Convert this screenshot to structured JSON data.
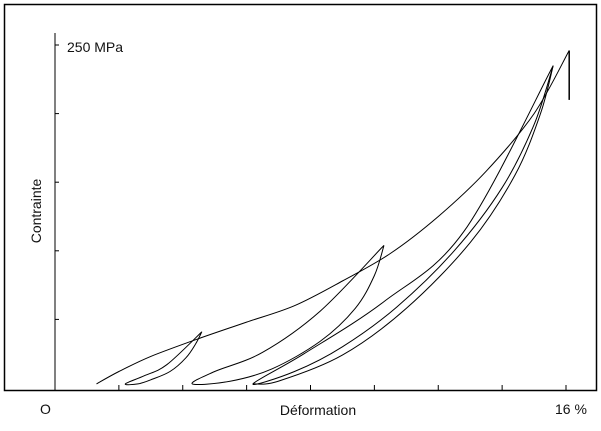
{
  "chart_data": {
    "type": "line",
    "title": "",
    "xlabel": "Déformation",
    "ylabel": "Contrainte",
    "x_axis": {
      "origin_label": "O",
      "max_label": "16 %",
      "range": [
        0,
        16
      ]
    },
    "y_axis": {
      "max_label": "250 MPa",
      "range": [
        0,
        250
      ]
    },
    "grid": false,
    "legend": "none",
    "colors": {
      "line": "#000000",
      "frame": "#000000",
      "background": "#ffffff"
    },
    "series": [
      {
        "values_xy": [
          [
            1.3,
            3
          ],
          [
            2.0,
            12
          ],
          [
            3.0,
            23
          ],
          [
            4.5,
            36
          ],
          [
            6.0,
            48
          ],
          [
            7.5,
            60
          ],
          [
            9.0,
            78
          ],
          [
            10.5,
            98
          ],
          [
            12.0,
            125
          ],
          [
            13.5,
            158
          ],
          [
            15.0,
            200
          ],
          [
            16.1,
            246
          ]
        ]
      },
      {
        "values_xy": [
          [
            16.1,
            246
          ],
          [
            16.1,
            210
          ]
        ]
      },
      {
        "values_xy": [
          [
            4.6,
            41
          ],
          [
            4.4,
            32
          ],
          [
            4.1,
            22
          ],
          [
            3.6,
            12
          ],
          [
            3.0,
            6
          ],
          [
            2.6,
            3
          ],
          [
            2.2,
            3
          ],
          [
            2.8,
            9
          ],
          [
            3.5,
            17
          ],
          [
            4.6,
            41
          ]
        ]
      },
      {
        "values_xy": [
          [
            10.3,
            104
          ],
          [
            10.0,
            82
          ],
          [
            9.4,
            58
          ],
          [
            8.3,
            34
          ],
          [
            6.8,
            14
          ],
          [
            5.5,
            5
          ],
          [
            4.3,
            3
          ],
          [
            5.0,
            12
          ],
          [
            6.5,
            26
          ],
          [
            8.3,
            56
          ],
          [
            10.3,
            104
          ]
        ]
      },
      {
        "values_xy": [
          [
            15.6,
            235
          ],
          [
            15.0,
            192
          ],
          [
            14.0,
            146
          ],
          [
            12.5,
            100
          ],
          [
            10.7,
            59
          ],
          [
            9.0,
            30
          ],
          [
            7.5,
            12
          ],
          [
            6.2,
            3
          ],
          [
            7.8,
            25
          ],
          [
            10.3,
            63
          ],
          [
            12.8,
            114
          ],
          [
            15.6,
            235
          ]
        ]
      },
      {
        "values_xy": [
          [
            15.6,
            235
          ],
          [
            15.2,
            200
          ],
          [
            14.4,
            155
          ],
          [
            13.0,
            106
          ],
          [
            11.0,
            58
          ],
          [
            9.0,
            24
          ],
          [
            7.0,
            5
          ],
          [
            6.2,
            3
          ]
        ]
      }
    ]
  }
}
